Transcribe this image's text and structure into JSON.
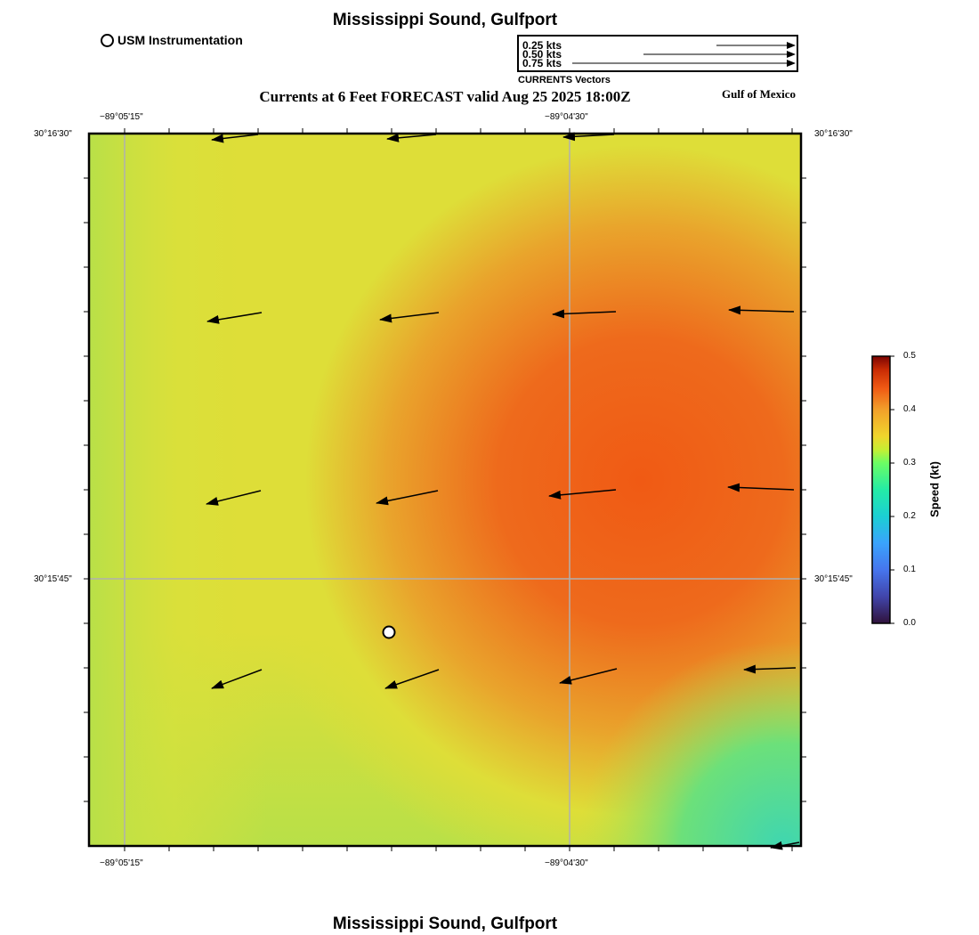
{
  "header": {
    "title": "Mississippi Sound, Gulfport",
    "subtitle": "Currents at 6 Feet FORECAST valid Aug 25 2025 18:00Z",
    "region": "Gulf of Mexico"
  },
  "legend": {
    "station_label": "USM Instrumentation",
    "vector_scale": [
      {
        "label": "0.25 kts",
        "value": 0.25
      },
      {
        "label": "0.50 kts",
        "value": 0.5
      },
      {
        "label": "0.75 kts",
        "value": 0.75
      }
    ],
    "vector_caption": "CURRENTS Vectors"
  },
  "axes": {
    "lon_ticks": [
      "−89°05'15\"",
      "−89°04'30\""
    ],
    "lat_ticks": [
      "30°16'30\"",
      "30°15'45\""
    ]
  },
  "colorbar": {
    "title": "Speed (kt)",
    "ticks": [
      "0.0",
      "0.1",
      "0.2",
      "0.3",
      "0.4",
      "0.5"
    ],
    "min": 0.0,
    "max": 0.5
  },
  "footer": {
    "title": "Mississippi Sound, Gulfport"
  },
  "colors": {
    "slow": "#3fd6b0",
    "mid": "#dede38",
    "fast": "#f06018",
    "grid": "#b0b0b0"
  }
}
